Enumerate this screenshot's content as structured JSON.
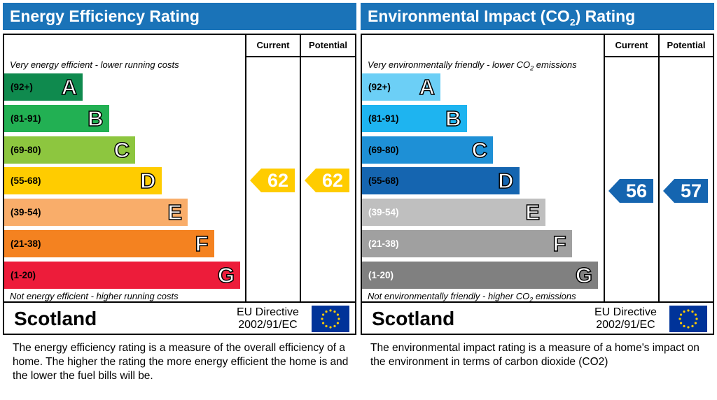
{
  "energy_efficiency": {
    "title": "Energy Efficiency Rating",
    "current_label": "Current",
    "potential_label": "Potential",
    "top_note": "Very energy efficient - lower running costs",
    "bottom_note": "Not energy efficient - higher running costs",
    "bands": [
      {
        "range": "(92+)",
        "letter": "A",
        "color": "#0f8a4e"
      },
      {
        "range": "(81-91)",
        "letter": "B",
        "color": "#22b053"
      },
      {
        "range": "(69-80)",
        "letter": "C",
        "color": "#8dc63f"
      },
      {
        "range": "(55-68)",
        "letter": "D",
        "color": "#ffcc00"
      },
      {
        "range": "(39-54)",
        "letter": "E",
        "color": "#f9ad6a"
      },
      {
        "range": "(21-38)",
        "letter": "F",
        "color": "#f48220"
      },
      {
        "range": "(1-20)",
        "letter": "G",
        "color": "#ed1c3a"
      }
    ],
    "current_value": "62",
    "potential_value": "62",
    "arrow_color": "#ffcc00",
    "region": "Scotland",
    "directive": "EU Directive",
    "directive_code": "2002/91/EC",
    "description": "The energy efficiency rating is a measure of the overall efficiency of a home.  The higher the rating the more energy efficient the home is and the lower the fuel bills will be."
  },
  "environmental_impact": {
    "title_pre": "Environmental Impact (CO",
    "title_sub": "2",
    "title_post": ") Rating",
    "current_label": "Current",
    "potential_label": "Potential",
    "top_note_pre": "Very environmentally friendly - lower CO",
    "top_note_sub": "2",
    "top_note_post": " emissions",
    "bottom_note_pre": "Not environmentally friendly - higher CO",
    "bottom_note_sub": "2",
    "bottom_note_post": " emissions",
    "bands": [
      {
        "range": "(92+)",
        "letter": "A",
        "color": "#6ccff6"
      },
      {
        "range": "(81-91)",
        "letter": "B",
        "color": "#1eb4f0"
      },
      {
        "range": "(69-80)",
        "letter": "C",
        "color": "#1e90d6"
      },
      {
        "range": "(55-68)",
        "letter": "D",
        "color": "#1565b0"
      },
      {
        "range": "(39-54)",
        "letter": "E",
        "color": "#bfbfbf"
      },
      {
        "range": "(21-38)",
        "letter": "F",
        "color": "#a0a0a0"
      },
      {
        "range": "(1-20)",
        "letter": "G",
        "color": "#808080"
      }
    ],
    "current_value": "56",
    "potential_value": "57",
    "arrow_color": "#1565b0",
    "region": "Scotland",
    "directive": "EU Directive",
    "directive_code": "2002/91/EC",
    "description": "The environmental impact rating is a measure of a home's impact on the environment in terms of carbon dioxide (CO2)"
  },
  "chart_data": [
    {
      "type": "bar",
      "title": "Energy Efficiency Rating",
      "categories": [
        "A",
        "B",
        "C",
        "D",
        "E",
        "F",
        "G"
      ],
      "ranges": [
        "(92+)",
        "(81-91)",
        "(69-80)",
        "(55-68)",
        "(39-54)",
        "(21-38)",
        "(1-20)"
      ],
      "current": 62,
      "potential": 62
    },
    {
      "type": "bar",
      "title": "Environmental Impact (CO2) Rating",
      "categories": [
        "A",
        "B",
        "C",
        "D",
        "E",
        "F",
        "G"
      ],
      "ranges": [
        "(92+)",
        "(81-91)",
        "(69-80)",
        "(55-68)",
        "(39-54)",
        "(21-38)",
        "(1-20)"
      ],
      "current": 56,
      "potential": 57
    }
  ]
}
